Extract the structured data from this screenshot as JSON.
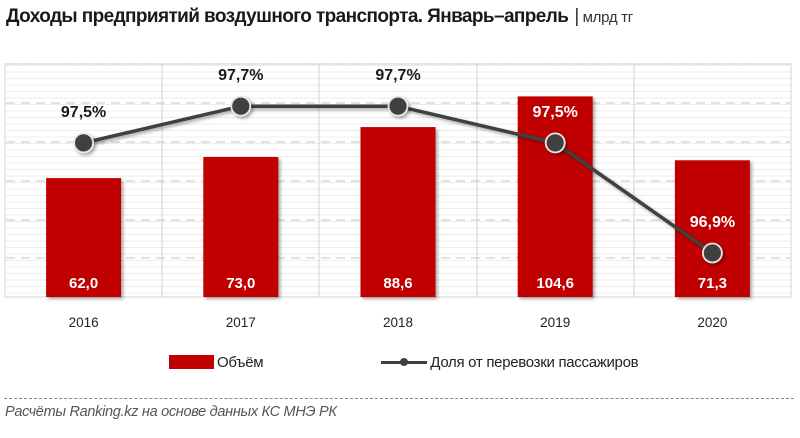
{
  "header": {
    "title": "Доходы предприятий воздушного транспорта. Январь–апрель",
    "separator": "|",
    "unit": "млрд тг"
  },
  "legend": {
    "bar_label": "Объём",
    "line_label": "Доля от перевозки пассажиров"
  },
  "footer": {
    "source": "Расчёты Ranking.kz на основе данных  КС МНЭ РК"
  },
  "colors": {
    "bar": "#c00000",
    "line": "#404040",
    "grid": "#bfbfbf"
  },
  "chart_data": {
    "type": "bar",
    "title": "Доходы предприятий воздушного транспорта. Январь–апрель",
    "subtitle": "млрд тг",
    "categories": [
      "2016",
      "2017",
      "2018",
      "2019",
      "2020"
    ],
    "series": [
      {
        "name": "Объём",
        "type": "bar",
        "axis": "primary",
        "values": [
          62.0,
          73.0,
          88.6,
          104.6,
          71.3
        ],
        "labels": [
          "62,0",
          "73,0",
          "88,6",
          "104,6",
          "71,3"
        ],
        "color": "#c00000"
      },
      {
        "name": "Доля от перевозки пассажиров",
        "type": "line",
        "axis": "secondary",
        "unit": "%",
        "values": [
          97.5,
          97.7,
          97.7,
          97.5,
          96.9
        ],
        "labels": [
          "97,5%",
          "97,7%",
          "97,7%",
          "97,5%",
          "96,9%"
        ],
        "color": "#404040"
      }
    ],
    "xlabel": "",
    "ylabel": "",
    "grid": true,
    "legend_position": "bottom",
    "source": "Расчёты Ranking.kz на основе данных  КС МНЭ РК"
  }
}
